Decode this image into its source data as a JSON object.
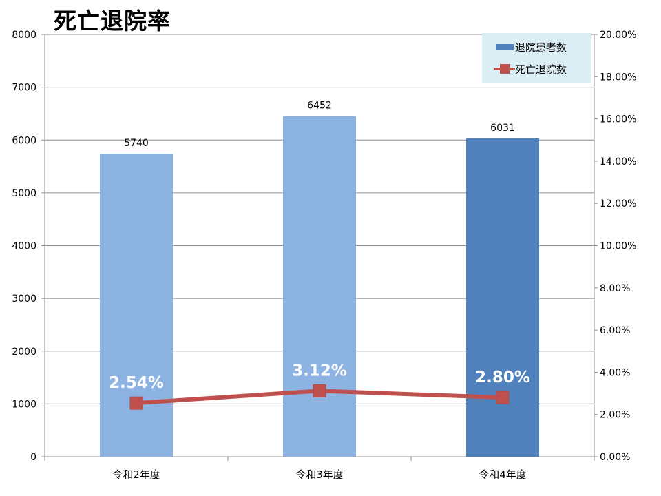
{
  "chart_data": {
    "type": "bar",
    "title": "死亡退院率",
    "categories": [
      "令和2年度",
      "令和3年度",
      "令和4年度"
    ],
    "series": [
      {
        "name": "退院患者数",
        "type": "bar",
        "axis": "left",
        "values": [
          5740,
          6452,
          6031
        ],
        "data_labels": [
          "5740",
          "6452",
          "6031"
        ],
        "colors": [
          "#8db3e2",
          "#8db3e2",
          "#4f81bd"
        ]
      },
      {
        "name": "死亡退院数",
        "type": "line",
        "axis": "right",
        "values": [
          2.54,
          3.12,
          2.8
        ],
        "data_labels": [
          "2.54%",
          "3.12%",
          "2.80%"
        ],
        "color": "#c0504d"
      }
    ],
    "y_left": {
      "ylim": [
        0,
        8000
      ],
      "ticks": [
        "0",
        "1000",
        "2000",
        "3000",
        "4000",
        "5000",
        "6000",
        "7000",
        "8000"
      ]
    },
    "y_right": {
      "ylim": [
        0,
        20
      ],
      "unit": "%",
      "ticks": [
        "0.00%",
        "2.00%",
        "4.00%",
        "6.00%",
        "8.00%",
        "10.00%",
        "12.00%",
        "14.00%",
        "16.00%",
        "18.00%",
        "20.00%"
      ]
    },
    "grid": true,
    "legend": "top-right"
  }
}
